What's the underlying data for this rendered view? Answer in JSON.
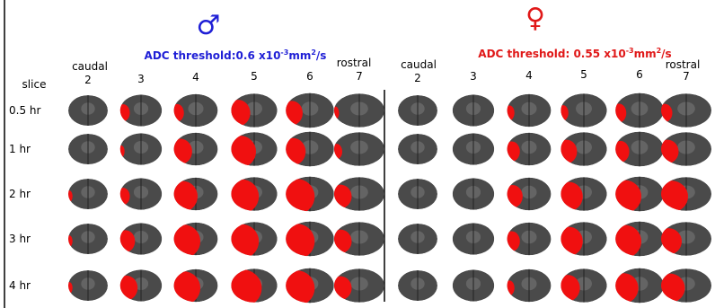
{
  "slice_label": "slice",
  "times": [
    "0.5 hr",
    "1 hr",
    "2 hr",
    "3 hr",
    "4 hr"
  ],
  "panels": [
    {
      "symbol": "♂",
      "color": "#1f1fd6",
      "threshold": {
        "text": "ADC threshold:0.6 x10",
        "exp": "-3",
        "unit": "mm",
        "unit_exp": "2",
        "tail": "/s"
      },
      "caudal": "caudal",
      "rostral": "rostral",
      "slices": [
        2,
        3,
        4,
        5,
        6,
        7
      ]
    },
    {
      "symbol": "♀",
      "color": "#e01818",
      "threshold": {
        "text": "ADC threshold: 0.55 x10",
        "exp": "-3",
        "unit": "mm",
        "unit_exp": "2",
        "tail": "/s"
      },
      "caudal": "caudal",
      "rostral": "rostral",
      "slices": [
        2,
        3,
        4,
        5,
        6,
        7
      ]
    }
  ]
}
